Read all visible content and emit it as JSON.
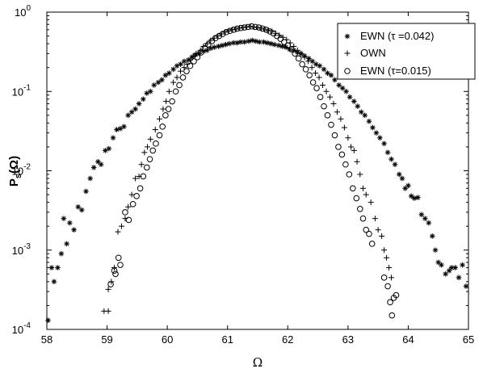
{
  "chart_data": {
    "type": "scatter",
    "title": "",
    "xlabel": "Ω",
    "ylabel_main": "P",
    "ylabel_sub": "s",
    "ylabel_arg": "(Ω)",
    "xlim": [
      58,
      65
    ],
    "ylim": [
      0.0001,
      1
    ],
    "yscale": "log",
    "x_ticks": [
      "58",
      "59",
      "60",
      "61",
      "62",
      "63",
      "64",
      "65"
    ],
    "y_ticks": [
      {
        "base": "10",
        "exp": "-4"
      },
      {
        "base": "10",
        "exp": "-3"
      },
      {
        "base": "10",
        "exp": "-2"
      },
      {
        "base": "10",
        "exp": "-1"
      },
      {
        "base": "10",
        "exp": "0"
      }
    ],
    "legend_position": "top-right",
    "series": [
      {
        "name": "EWN (τ =0.042)",
        "marker": "asterisk",
        "points": [
          [
            58.02,
            0.00013
          ],
          [
            58.08,
            0.0006
          ],
          [
            58.12,
            0.0004
          ],
          [
            58.18,
            0.0006
          ],
          [
            58.24,
            0.0009
          ],
          [
            58.28,
            0.0025
          ],
          [
            58.33,
            0.0012
          ],
          [
            58.38,
            0.0022
          ],
          [
            58.45,
            0.0018
          ],
          [
            58.52,
            0.0035
          ],
          [
            58.58,
            0.0032
          ],
          [
            58.65,
            0.0055
          ],
          [
            58.72,
            0.008
          ],
          [
            58.78,
            0.011
          ],
          [
            58.85,
            0.013
          ],
          [
            58.9,
            0.012
          ],
          [
            58.97,
            0.018
          ],
          [
            59.03,
            0.019
          ],
          [
            59.1,
            0.026
          ],
          [
            59.16,
            0.033
          ],
          [
            59.22,
            0.034
          ],
          [
            59.28,
            0.036
          ],
          [
            59.35,
            0.05
          ],
          [
            59.41,
            0.055
          ],
          [
            59.47,
            0.06
          ],
          [
            59.53,
            0.07
          ],
          [
            59.6,
            0.08
          ],
          [
            59.66,
            0.095
          ],
          [
            59.72,
            0.1
          ],
          [
            59.78,
            0.12
          ],
          [
            59.85,
            0.13
          ],
          [
            59.91,
            0.14
          ],
          [
            59.97,
            0.16
          ],
          [
            60.03,
            0.17
          ],
          [
            60.1,
            0.19
          ],
          [
            60.16,
            0.21
          ],
          [
            60.22,
            0.22
          ],
          [
            60.28,
            0.24
          ],
          [
            60.35,
            0.25
          ],
          [
            60.41,
            0.27
          ],
          [
            60.47,
            0.29
          ],
          [
            60.53,
            0.3
          ],
          [
            60.6,
            0.32
          ],
          [
            60.66,
            0.33
          ],
          [
            60.72,
            0.35
          ],
          [
            60.78,
            0.36
          ],
          [
            60.85,
            0.37
          ],
          [
            60.91,
            0.38
          ],
          [
            60.97,
            0.39
          ],
          [
            61.03,
            0.4
          ],
          [
            61.1,
            0.41
          ],
          [
            61.16,
            0.41
          ],
          [
            61.22,
            0.42
          ],
          [
            61.28,
            0.42
          ],
          [
            61.35,
            0.43
          ],
          [
            61.41,
            0.44
          ],
          [
            61.47,
            0.43
          ],
          [
            61.53,
            0.42
          ],
          [
            61.6,
            0.42
          ],
          [
            61.66,
            0.41
          ],
          [
            61.72,
            0.4
          ],
          [
            61.78,
            0.39
          ],
          [
            61.85,
            0.38
          ],
          [
            61.91,
            0.37
          ],
          [
            61.97,
            0.36
          ],
          [
            62.03,
            0.34
          ],
          [
            62.1,
            0.33
          ],
          [
            62.16,
            0.31
          ],
          [
            62.22,
            0.3
          ],
          [
            62.28,
            0.28
          ],
          [
            62.35,
            0.26
          ],
          [
            62.41,
            0.24
          ],
          [
            62.47,
            0.22
          ],
          [
            62.53,
            0.21
          ],
          [
            62.6,
            0.19
          ],
          [
            62.66,
            0.17
          ],
          [
            62.72,
            0.16
          ],
          [
            62.78,
            0.14
          ],
          [
            62.85,
            0.12
          ],
          [
            62.91,
            0.11
          ],
          [
            62.97,
            0.1
          ],
          [
            63.03,
            0.085
          ],
          [
            63.1,
            0.075
          ],
          [
            63.16,
            0.065
          ],
          [
            63.22,
            0.055
          ],
          [
            63.28,
            0.05
          ],
          [
            63.35,
            0.042
          ],
          [
            63.41,
            0.035
          ],
          [
            63.47,
            0.03
          ],
          [
            63.53,
            0.026
          ],
          [
            63.6,
            0.022
          ],
          [
            63.66,
            0.017
          ],
          [
            63.72,
            0.014
          ],
          [
            63.78,
            0.012
          ],
          [
            63.85,
            0.009
          ],
          [
            63.9,
            0.008
          ],
          [
            63.95,
            0.006
          ],
          [
            64.0,
            0.0065
          ],
          [
            64.05,
            0.0048
          ],
          [
            64.1,
            0.0045
          ],
          [
            64.16,
            0.0046
          ],
          [
            64.22,
            0.0028
          ],
          [
            64.28,
            0.0025
          ],
          [
            64.34,
            0.0022
          ],
          [
            64.4,
            0.0015
          ],
          [
            64.45,
            0.001
          ],
          [
            64.5,
            0.0007
          ],
          [
            64.55,
            0.00065
          ],
          [
            64.62,
            0.0005
          ],
          [
            64.68,
            0.00055
          ],
          [
            64.72,
            0.0006
          ],
          [
            64.78,
            0.0006
          ],
          [
            64.84,
            0.00045
          ],
          [
            64.9,
            0.00065
          ],
          [
            64.96,
            0.00035
          ]
        ]
      },
      {
        "name": "OWN",
        "marker": "plus",
        "points": [
          [
            58.95,
            0.00017
          ],
          [
            59.02,
            0.00017
          ],
          [
            59.02,
            0.00032
          ],
          [
            59.07,
            0.0004
          ],
          [
            59.12,
            0.0006
          ],
          [
            59.18,
            0.0017
          ],
          [
            59.24,
            0.002
          ],
          [
            59.3,
            0.0025
          ],
          [
            59.35,
            0.0035
          ],
          [
            59.41,
            0.005
          ],
          [
            59.47,
            0.008
          ],
          [
            59.53,
            0.0085
          ],
          [
            59.57,
            0.012
          ],
          [
            59.62,
            0.017
          ],
          [
            59.67,
            0.02
          ],
          [
            59.72,
            0.025
          ],
          [
            59.8,
            0.033
          ],
          [
            59.87,
            0.045
          ],
          [
            59.93,
            0.06
          ],
          [
            59.98,
            0.075
          ],
          [
            60.03,
            0.1
          ],
          [
            60.1,
            0.13
          ],
          [
            60.16,
            0.15
          ],
          [
            60.22,
            0.18
          ],
          [
            60.28,
            0.2
          ],
          [
            60.33,
            0.22
          ],
          [
            60.38,
            0.25
          ],
          [
            60.43,
            0.28
          ],
          [
            60.48,
            0.3
          ],
          [
            60.55,
            0.33
          ],
          [
            60.6,
            0.37
          ],
          [
            60.66,
            0.4
          ],
          [
            60.72,
            0.44
          ],
          [
            60.78,
            0.47
          ],
          [
            60.84,
            0.5
          ],
          [
            60.9,
            0.53
          ],
          [
            60.96,
            0.56
          ],
          [
            61.02,
            0.58
          ],
          [
            61.08,
            0.6
          ],
          [
            61.14,
            0.61
          ],
          [
            61.2,
            0.63
          ],
          [
            61.26,
            0.64
          ],
          [
            61.32,
            0.65
          ],
          [
            61.38,
            0.66
          ],
          [
            61.44,
            0.65
          ],
          [
            61.5,
            0.64
          ],
          [
            61.56,
            0.63
          ],
          [
            61.62,
            0.61
          ],
          [
            61.68,
            0.59
          ],
          [
            61.74,
            0.57
          ],
          [
            61.8,
            0.54
          ],
          [
            61.86,
            0.51
          ],
          [
            61.92,
            0.48
          ],
          [
            61.98,
            0.45
          ],
          [
            62.04,
            0.41
          ],
          [
            62.1,
            0.37
          ],
          [
            62.16,
            0.33
          ],
          [
            62.22,
            0.3
          ],
          [
            62.28,
            0.27
          ],
          [
            62.34,
            0.24
          ],
          [
            62.4,
            0.2
          ],
          [
            62.46,
            0.17
          ],
          [
            62.52,
            0.15
          ],
          [
            62.58,
            0.12
          ],
          [
            62.64,
            0.1
          ],
          [
            62.7,
            0.085
          ],
          [
            62.76,
            0.07
          ],
          [
            62.82,
            0.055
          ],
          [
            62.88,
            0.045
          ],
          [
            62.94,
            0.035
          ],
          [
            63.0,
            0.026
          ],
          [
            63.05,
            0.02
          ],
          [
            63.1,
            0.018
          ],
          [
            63.15,
            0.013
          ],
          [
            63.2,
            0.009
          ],
          [
            63.25,
            0.006
          ],
          [
            63.3,
            0.005
          ],
          [
            63.38,
            0.004
          ],
          [
            63.45,
            0.0025
          ],
          [
            63.5,
            0.0018
          ],
          [
            63.56,
            0.0015
          ],
          [
            63.6,
            0.001
          ],
          [
            63.64,
            0.0008
          ],
          [
            63.68,
            0.0006
          ],
          [
            63.72,
            0.00045
          ]
        ]
      },
      {
        "name": "EWN (τ=0.015)",
        "marker": "circle",
        "points": [
          [
            59.06,
            0.00037
          ],
          [
            59.12,
            0.00055
          ],
          [
            59.14,
            0.0005
          ],
          [
            59.19,
            0.0008
          ],
          [
            59.22,
            0.00065
          ],
          [
            59.3,
            0.003
          ],
          [
            59.36,
            0.0024
          ],
          [
            59.43,
            0.0038
          ],
          [
            59.49,
            0.0048
          ],
          [
            59.55,
            0.006
          ],
          [
            59.6,
            0.0085
          ],
          [
            59.66,
            0.011
          ],
          [
            59.71,
            0.014
          ],
          [
            59.76,
            0.018
          ],
          [
            59.81,
            0.022
          ],
          [
            59.87,
            0.028
          ],
          [
            59.92,
            0.036
          ],
          [
            59.97,
            0.05
          ],
          [
            60.02,
            0.06
          ],
          [
            60.08,
            0.075
          ],
          [
            60.14,
            0.1
          ],
          [
            60.2,
            0.12
          ],
          [
            60.26,
            0.15
          ],
          [
            60.32,
            0.18
          ],
          [
            60.38,
            0.21
          ],
          [
            60.44,
            0.24
          ],
          [
            60.5,
            0.27
          ],
          [
            60.56,
            0.31
          ],
          [
            60.62,
            0.35
          ],
          [
            60.68,
            0.39
          ],
          [
            60.74,
            0.43
          ],
          [
            60.8,
            0.47
          ],
          [
            60.86,
            0.5
          ],
          [
            60.92,
            0.53
          ],
          [
            60.98,
            0.56
          ],
          [
            61.04,
            0.58
          ],
          [
            61.1,
            0.6
          ],
          [
            61.16,
            0.62
          ],
          [
            61.22,
            0.63
          ],
          [
            61.28,
            0.64
          ],
          [
            61.34,
            0.65
          ],
          [
            61.4,
            0.66
          ],
          [
            61.46,
            0.65
          ],
          [
            61.52,
            0.64
          ],
          [
            61.58,
            0.62
          ],
          [
            61.64,
            0.6
          ],
          [
            61.7,
            0.57
          ],
          [
            61.76,
            0.54
          ],
          [
            61.82,
            0.5
          ],
          [
            61.88,
            0.46
          ],
          [
            61.94,
            0.42
          ],
          [
            62.0,
            0.38
          ],
          [
            62.06,
            0.34
          ],
          [
            62.12,
            0.3
          ],
          [
            62.18,
            0.26
          ],
          [
            62.24,
            0.22
          ],
          [
            62.3,
            0.19
          ],
          [
            62.36,
            0.16
          ],
          [
            62.42,
            0.13
          ],
          [
            62.48,
            0.11
          ],
          [
            62.54,
            0.085
          ],
          [
            62.6,
            0.065
          ],
          [
            62.66,
            0.05
          ],
          [
            62.72,
            0.038
          ],
          [
            62.78,
            0.028
          ],
          [
            62.84,
            0.02
          ],
          [
            62.9,
            0.016
          ],
          [
            62.96,
            0.012
          ],
          [
            63.02,
            0.009
          ],
          [
            63.08,
            0.006
          ],
          [
            63.14,
            0.0045
          ],
          [
            63.2,
            0.0033
          ],
          [
            63.25,
            0.0025
          ],
          [
            63.3,
            0.0018
          ],
          [
            63.35,
            0.0016
          ],
          [
            63.4,
            0.0012
          ],
          [
            63.6,
            0.00045
          ],
          [
            63.66,
            0.00035
          ],
          [
            63.7,
            0.00022
          ],
          [
            63.73,
            0.00015
          ],
          [
            63.76,
            0.00025
          ],
          [
            63.8,
            0.00027
          ]
        ]
      }
    ]
  }
}
